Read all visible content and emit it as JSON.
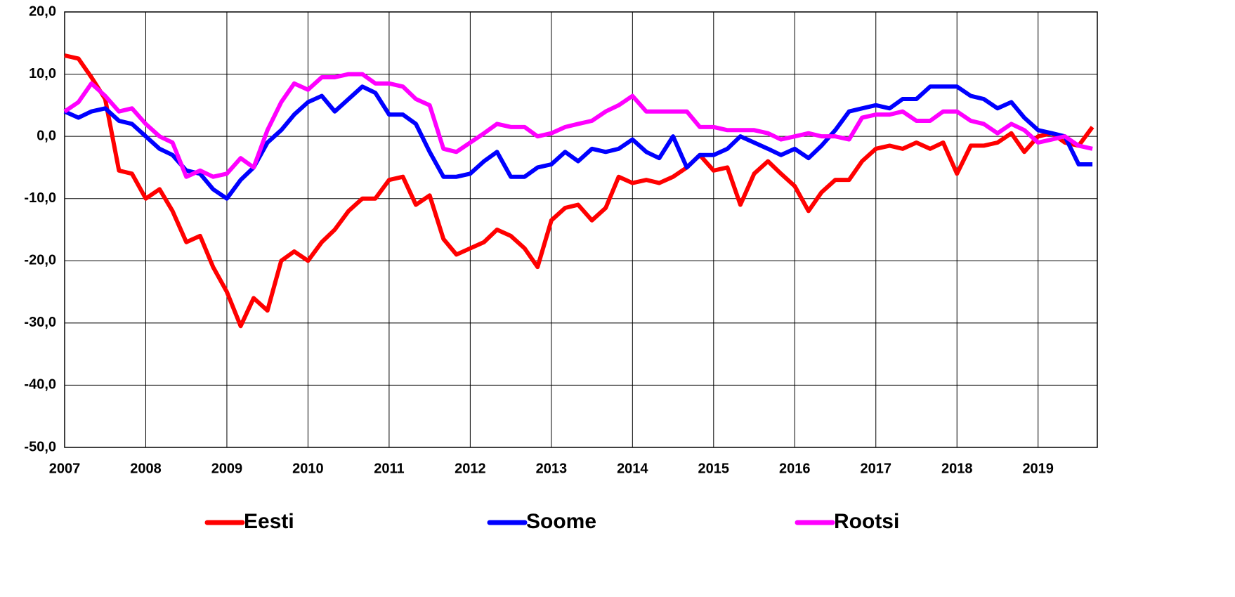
{
  "chart_data": {
    "type": "line",
    "x": [
      2007,
      2007.17,
      2007.33,
      2007.5,
      2007.67,
      2007.83,
      2008,
      2008.17,
      2008.33,
      2008.5,
      2008.67,
      2008.83,
      2009,
      2009.17,
      2009.33,
      2009.5,
      2009.67,
      2009.83,
      2010,
      2010.17,
      2010.33,
      2010.5,
      2010.67,
      2010.83,
      2011,
      2011.17,
      2011.33,
      2011.5,
      2011.67,
      2011.83,
      2012,
      2012.17,
      2012.33,
      2012.5,
      2012.67,
      2012.83,
      2013,
      2013.17,
      2013.33,
      2013.5,
      2013.67,
      2013.83,
      2014,
      2014.17,
      2014.33,
      2014.5,
      2014.67,
      2014.83,
      2015,
      2015.17,
      2015.33,
      2015.5,
      2015.67,
      2015.83,
      2016,
      2016.17,
      2016.33,
      2016.5,
      2016.67,
      2016.83,
      2017,
      2017.17,
      2017.33,
      2017.5,
      2017.67,
      2017.83,
      2018,
      2018.17,
      2018.33,
      2018.5,
      2018.67,
      2018.83,
      2019,
      2019.17,
      2019.33,
      2019.5,
      2019.67
    ],
    "series": [
      {
        "name": "Eesti",
        "color": "#ff0000",
        "values": [
          13,
          12.5,
          9.5,
          6,
          -5.5,
          -6,
          -10,
          -8.5,
          -12,
          -17,
          -16,
          -21,
          -25,
          -30.5,
          -26,
          -28,
          -20,
          -18.5,
          -20,
          -17,
          -15,
          -12,
          -10,
          -10,
          -7,
          -6.5,
          -11,
          -9.5,
          -16.5,
          -19,
          -18,
          -17,
          -15,
          -16,
          -18,
          -21,
          -13.5,
          -11.5,
          -11,
          -13.5,
          -11.5,
          -6.5,
          -7.5,
          -7,
          -7.5,
          -6.5,
          -5,
          -3,
          -5.5,
          -5,
          -11,
          -6,
          -4,
          -6,
          -8,
          -12,
          -9,
          -7,
          -7,
          -4,
          -2,
          -1.5,
          -2,
          -1,
          -2,
          -1,
          -6,
          -1.5,
          -1.5,
          -1,
          0.5,
          -2.5,
          0,
          0.5,
          -1,
          -1.5,
          1.5
        ]
      },
      {
        "name": "Soome",
        "color": "#0000ff",
        "values": [
          4,
          3,
          4,
          4.5,
          2.5,
          2,
          0,
          -2,
          -3,
          -5.5,
          -6,
          -8.5,
          -10,
          -7,
          -5,
          -1,
          1,
          3.5,
          5.5,
          6.5,
          4,
          6,
          8,
          7,
          3.5,
          3.5,
          2,
          -2.5,
          -6.5,
          -6.5,
          -6,
          -4,
          -2.5,
          -6.5,
          -6.5,
          -5,
          -4.5,
          -2.5,
          -4,
          -2,
          -2.5,
          -2,
          -0.5,
          -2.5,
          -3.5,
          0,
          -5,
          -3,
          -3,
          -2,
          0,
          -1,
          -2,
          -3,
          -2,
          -3.5,
          -1.5,
          1,
          4,
          4.5,
          5,
          4.5,
          6,
          6,
          8,
          8,
          8,
          6.5,
          6,
          4.5,
          5.5,
          3,
          1,
          0.5,
          0,
          -4.5,
          -4.5
        ]
      },
      {
        "name": "Rootsi",
        "color": "#ff00ff",
        "values": [
          4,
          5.5,
          8.5,
          6.5,
          4,
          4.5,
          2,
          0,
          -1,
          -6.5,
          -5.5,
          -6.5,
          -6,
          -3.5,
          -5,
          1,
          5.5,
          8.5,
          7.5,
          9.5,
          9.5,
          10,
          10,
          8.5,
          8.5,
          8,
          6,
          5,
          -2,
          -2.5,
          -1,
          0.5,
          2,
          1.5,
          1.5,
          0,
          0.5,
          1.5,
          2,
          2.5,
          4,
          5,
          6.5,
          4,
          4,
          4,
          4,
          1.5,
          1.5,
          1,
          1,
          1,
          0.5,
          -0.5,
          0,
          0.5,
          0,
          0,
          -0.5,
          3,
          3.5,
          3.5,
          4,
          2.5,
          2.5,
          4,
          4,
          2.5,
          2,
          0.5,
          2,
          1,
          -1,
          -0.5,
          0,
          -1.5,
          -2
        ]
      }
    ],
    "xlim": [
      2007,
      2019.73
    ],
    "xticks": [
      2007,
      2008,
      2009,
      2010,
      2011,
      2012,
      2013,
      2014,
      2015,
      2016,
      2017,
      2018,
      2019
    ],
    "ylim": [
      -50,
      20
    ],
    "yticks": [
      {
        "value": -50,
        "label": "-50,0"
      },
      {
        "value": -40,
        "label": "-40,0"
      },
      {
        "value": -30,
        "label": "-30,0"
      },
      {
        "value": -20,
        "label": "-20,0"
      },
      {
        "value": -10,
        "label": "-10,0"
      },
      {
        "value": 0,
        "label": "0,0"
      },
      {
        "value": 10,
        "label": "10,0"
      },
      {
        "value": 20,
        "label": "20,0"
      }
    ],
    "grid": true,
    "legend": "bottom"
  }
}
